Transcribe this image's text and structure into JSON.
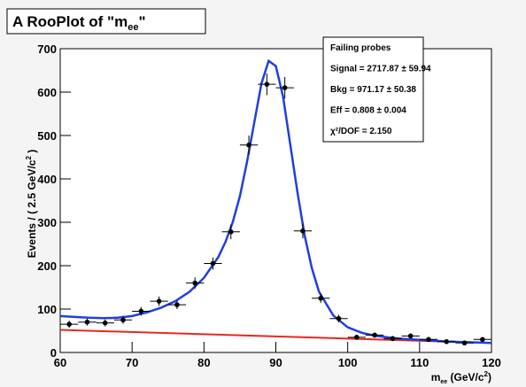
{
  "chart_data": {
    "type": "scatter",
    "title": [
      "A RooPlot of \"m",
      "ee",
      "\""
    ],
    "y_label": [
      "Events / ( 2.5 GeV/c",
      "2",
      " )"
    ],
    "x_label": [
      "m",
      "ee",
      " (GeV/c",
      "2",
      ")"
    ],
    "xlim": [
      60,
      120
    ],
    "xticks": [
      60,
      70,
      80,
      90,
      100,
      110,
      120
    ],
    "ylim": [
      0,
      700
    ],
    "yticks": [
      0,
      100,
      200,
      300,
      400,
      500,
      600,
      700
    ],
    "points": {
      "color": "#000000",
      "xerr": 1.25,
      "x": [
        61.25,
        63.75,
        66.25,
        68.75,
        71.25,
        73.75,
        76.25,
        78.75,
        81.25,
        83.75,
        86.25,
        88.75,
        91.25,
        93.75,
        96.25,
        98.75,
        101.25,
        103.75,
        106.25,
        108.75,
        111.25,
        113.75,
        116.25,
        118.75
      ],
      "values": [
        65,
        70,
        68,
        75,
        95,
        118,
        110,
        160,
        205,
        278,
        478,
        618,
        610,
        280,
        125,
        78,
        35,
        40,
        32,
        38,
        30,
        25,
        22,
        30
      ],
      "yerr": [
        8,
        8,
        8,
        9,
        10,
        11,
        10,
        13,
        14,
        17,
        22,
        25,
        25,
        17,
        11,
        9,
        6,
        6,
        6,
        6,
        5,
        5,
        5,
        5
      ]
    },
    "fit": {
      "color": "#1f3fe0",
      "x": [
        60,
        62,
        64,
        66,
        68,
        70,
        72,
        74,
        76,
        78,
        80,
        82,
        83,
        84,
        85,
        86,
        87,
        88,
        89,
        90,
        91,
        92,
        93,
        94,
        95,
        96,
        98,
        100,
        102,
        104,
        106,
        108,
        110,
        112,
        114,
        116,
        118,
        120
      ],
      "values": [
        84,
        82,
        80,
        79,
        80,
        84,
        92,
        103,
        118,
        140,
        172,
        220,
        255,
        300,
        360,
        440,
        530,
        620,
        672,
        660,
        590,
        480,
        370,
        270,
        195,
        140,
        85,
        58,
        45,
        38,
        34,
        31,
        29,
        27,
        25,
        24,
        23,
        22
      ]
    },
    "background": {
      "color": "#e8281e",
      "x": [
        60,
        120
      ],
      "values": [
        52,
        22
      ]
    },
    "stats": [
      "Failing probes",
      "Signal = 2717.87 ± 59.94",
      "Bkg = 971.17 ± 50.38",
      "Eff = 0.808 ± 0.004",
      "χ²/DOF = 2.150"
    ]
  }
}
